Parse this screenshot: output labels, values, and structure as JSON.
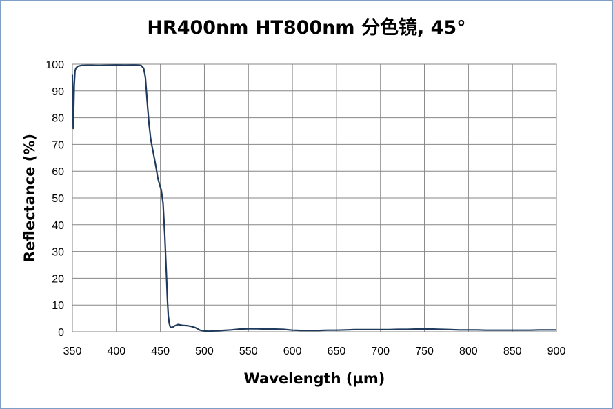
{
  "chart_data": {
    "type": "line",
    "title": "HR400nm  HT800nm 分色镜, 45°",
    "xlabel": "Wavelength (µm)",
    "ylabel": "Reflectance (%)",
    "xlim": [
      350,
      900
    ],
    "ylim": [
      0,
      100
    ],
    "xticks": [
      350,
      400,
      450,
      500,
      550,
      600,
      650,
      700,
      750,
      800,
      850,
      900
    ],
    "yticks": [
      0,
      10,
      20,
      30,
      40,
      50,
      60,
      70,
      80,
      90,
      100
    ],
    "grid": true,
    "line_color": "#1f3a5c",
    "series": [
      {
        "x": [
          350,
          351,
          352,
          353,
          354,
          356,
          360,
          370,
          380,
          390,
          400,
          410,
          420,
          425,
          428,
          431,
          433,
          435,
          437,
          439,
          441,
          443,
          445,
          447,
          449,
          451,
          453,
          455,
          456,
          457,
          458,
          459,
          460,
          461,
          462,
          464,
          466,
          470,
          475,
          480,
          485,
          490,
          495,
          500,
          505,
          510,
          520,
          530,
          540,
          550,
          560,
          570,
          580,
          590,
          600,
          610,
          620,
          630,
          640,
          650,
          660,
          670,
          680,
          690,
          700,
          710,
          720,
          730,
          740,
          750,
          760,
          770,
          780,
          790,
          800,
          810,
          820,
          830,
          840,
          850,
          860,
          870,
          880,
          890,
          900
        ],
        "y": [
          96,
          76,
          92,
          97.5,
          98.5,
          99.2,
          99.5,
          99.6,
          99.5,
          99.6,
          99.7,
          99.6,
          99.7,
          99.6,
          99.5,
          98.5,
          95,
          86,
          78,
          72,
          68.5,
          65,
          61.5,
          57.5,
          55,
          53,
          48,
          36,
          28,
          20,
          12,
          6,
          3.2,
          2.0,
          1.6,
          1.7,
          2.2,
          2.7,
          2.4,
          2.3,
          2.0,
          1.5,
          0.6,
          0.3,
          0.2,
          0.3,
          0.5,
          0.7,
          1.0,
          1.1,
          1.1,
          1.0,
          1.0,
          0.9,
          0.6,
          0.5,
          0.5,
          0.5,
          0.6,
          0.6,
          0.7,
          0.8,
          0.8,
          0.8,
          0.8,
          0.8,
          0.9,
          0.9,
          1.0,
          1.0,
          1.0,
          0.9,
          0.8,
          0.7,
          0.7,
          0.7,
          0.6,
          0.6,
          0.6,
          0.6,
          0.6,
          0.6,
          0.7,
          0.7,
          0.7
        ]
      }
    ]
  }
}
